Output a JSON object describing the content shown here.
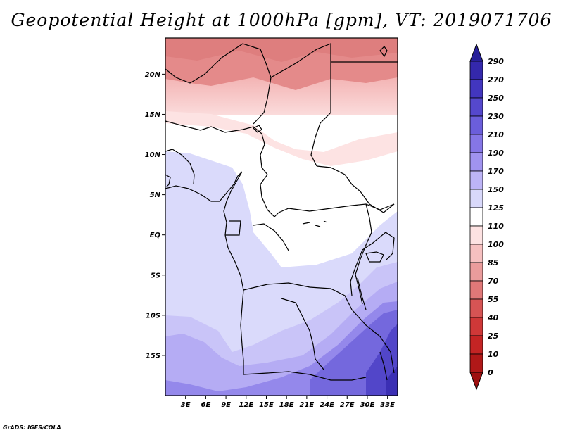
{
  "title": "Geopotential Height at 1000hPa [gpm], VT: 2019071706",
  "credit": "GrADS: IGES/COLA",
  "map": {
    "region": "Central Africa",
    "lat_labels": [
      "20N",
      "15N",
      "10N",
      "5N",
      "EQ",
      "5S",
      "10S",
      "15S"
    ],
    "lat_values": [
      20,
      15,
      10,
      5,
      0,
      -5,
      -10,
      -15
    ],
    "lon_labels": [
      "3E",
      "6E",
      "9E",
      "12E",
      "15E",
      "18E",
      "21E",
      "24E",
      "27E",
      "30E",
      "33E"
    ],
    "lon_values": [
      3,
      6,
      9,
      12,
      15,
      18,
      21,
      24,
      27,
      30,
      33
    ],
    "lon_range": [
      0,
      34.5
    ],
    "lat_range": [
      -20,
      24.5
    ]
  },
  "colorbar": {
    "labels": [
      "290",
      "270",
      "250",
      "230",
      "210",
      "190",
      "170",
      "150",
      "125",
      "110",
      "100",
      "85",
      "70",
      "55",
      "40",
      "25",
      "10",
      "0"
    ],
    "colors": [
      "#28209a",
      "#3428ac",
      "#4236bf",
      "#5548cd",
      "#6b5edb",
      "#8576e6",
      "#a093ef",
      "#bdb4f6",
      "#d8d8fa",
      "#ffffff",
      "#fde2e2",
      "#f6c0c0",
      "#ea9c9c",
      "#e07878",
      "#d65454",
      "#cf3838",
      "#c42424",
      "#b01818",
      "#9e1010"
    ]
  }
}
